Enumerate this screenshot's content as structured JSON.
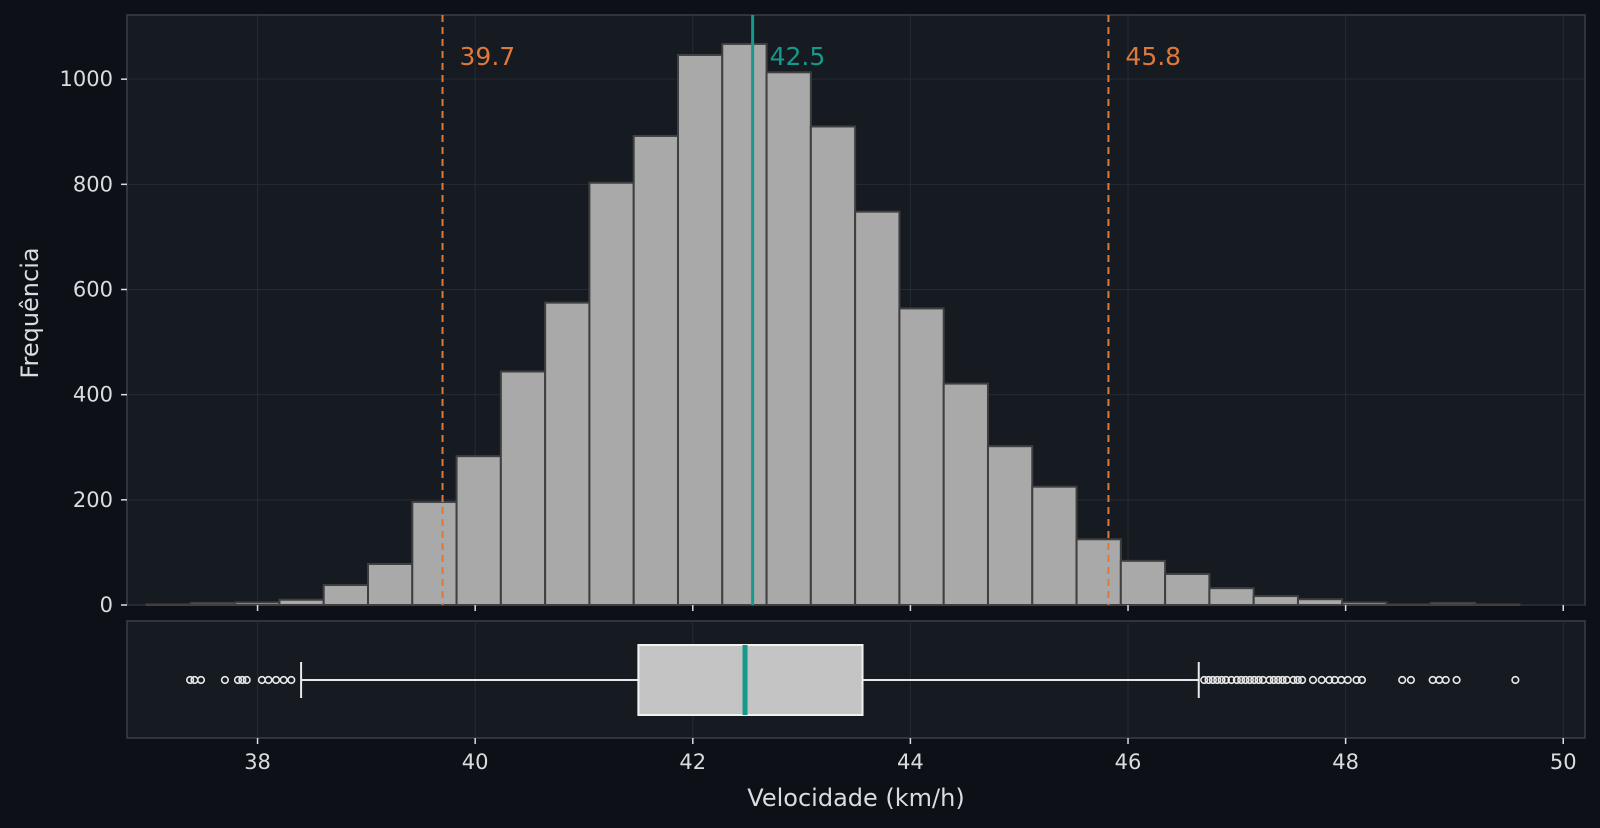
{
  "colors": {
    "background": "#0d1117",
    "panel": "#161b22",
    "panel_border": "#3a3f47",
    "grid": "#262b33",
    "bar_fill": "#a9a9a9",
    "bar_edge": "#3f3f3f",
    "box_fill": "#c4c4c4",
    "median": "#14998a",
    "percentile": "#e0783a",
    "text": "#d9dce1"
  },
  "chart_data": {
    "type": "histogram_with_boxplot",
    "xlabel": "Velocidade (km/h)",
    "ylabel": "Frequência",
    "xlim": [
      36.8,
      50.2
    ],
    "ylim": [
      0,
      1122
    ],
    "grid": true,
    "x_ticks": [
      38,
      40,
      42,
      44,
      46,
      48,
      50
    ],
    "y_ticks": [
      0,
      200,
      400,
      600,
      800,
      1000
    ],
    "bin_width": 0.407,
    "bins_start": 36.98,
    "counts": [
      1,
      4,
      5,
      10,
      38,
      78,
      196,
      283,
      444,
      575,
      803,
      892,
      1046,
      1067,
      1013,
      910,
      748,
      564,
      421,
      302,
      225,
      125,
      84,
      59,
      32,
      17,
      11,
      5,
      1,
      4,
      1
    ],
    "reference_lines": [
      {
        "label": "39.7",
        "value": 39.7,
        "style": "dashed",
        "role": "percentile"
      },
      {
        "label": "42.5",
        "value": 42.55,
        "style": "solid",
        "role": "median"
      },
      {
        "label": "45.8",
        "value": 45.82,
        "style": "dashed",
        "role": "percentile"
      }
    ],
    "boxplot": {
      "whisker_low": 38.4,
      "q1": 41.5,
      "median": 42.48,
      "q3": 43.56,
      "whisker_high": 46.65,
      "outliers": [
        37.38,
        37.42,
        37.48,
        37.7,
        37.82,
        37.86,
        37.9,
        38.04,
        38.1,
        38.17,
        38.24,
        38.31,
        46.7,
        46.74,
        46.78,
        46.82,
        46.86,
        46.9,
        46.95,
        47.0,
        47.04,
        47.08,
        47.12,
        47.16,
        47.2,
        47.24,
        47.3,
        47.34,
        47.38,
        47.42,
        47.46,
        47.52,
        47.56,
        47.6,
        47.7,
        47.78,
        47.85,
        47.9,
        47.96,
        48.02,
        48.1,
        48.15,
        48.52,
        48.6,
        48.8,
        48.86,
        48.92,
        49.02,
        49.56
      ]
    }
  }
}
